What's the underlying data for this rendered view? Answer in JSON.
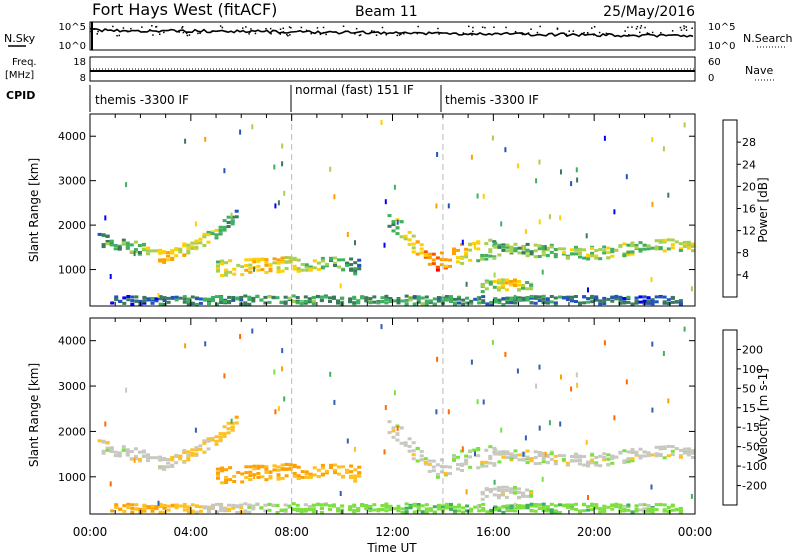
{
  "header": {
    "station": "Fort Hays West (fitACF)",
    "beam": "Beam 11",
    "date": "25/May/2016"
  },
  "sky_panel": {
    "left_label": "N.Sky",
    "right_label": "N.Search",
    "left_ticks": [
      "10^5",
      "10^0"
    ],
    "right_ticks": [
      "10^5",
      "10^0"
    ]
  },
  "freq_panel": {
    "left_label_1": "Freq.",
    "left_label_2": "[MHz]",
    "right_label": "Nave",
    "left_ticks": [
      "18",
      "8"
    ],
    "right_ticks": [
      "60",
      "0"
    ]
  },
  "cpid_panel": {
    "label": "CPID",
    "segments": [
      {
        "start_hour": 0,
        "end_hour": 8,
        "text": "themis -3300 IF"
      },
      {
        "start_hour": 8,
        "end_hour": 14,
        "text": "normal (fast) 151 IF"
      },
      {
        "start_hour": 14,
        "end_hour": 24,
        "text": "themis -3300 IF"
      }
    ]
  },
  "colors": {
    "power": [
      "#0000ff",
      "#2255bb",
      "#3a7a5a",
      "#3fb060",
      "#a8d050",
      "#ffd000",
      "#ffa000",
      "#ff5000",
      "#ff0000"
    ],
    "velocity": [
      "#ee0000",
      "#ff6a00",
      "#ffa000",
      "#ffc020",
      "#c8c8c0",
      "#c8c8c0",
      "#7ce040",
      "#40b060",
      "#3060b0",
      "#1030c0"
    ],
    "velocity_ground": "#c8c8c0",
    "grid_dash": "#bbbbbb"
  },
  "chart_data": [
    {
      "type": "heatmap",
      "name": "power",
      "xlabel": "",
      "ylabel": "Slant Range [km]",
      "colorbar_label": "Power [dB]",
      "colorbar_ticks": [
        "28",
        "24",
        "20",
        "16",
        "12",
        "8",
        "4"
      ],
      "colorbar_range": [
        0,
        32
      ],
      "xlim": [
        0,
        24
      ],
      "ylim": [
        180,
        4500
      ],
      "yticks": [
        "4000",
        "3000",
        "2000",
        "1000"
      ],
      "ytick_values": [
        4000,
        3000,
        2000,
        1000
      ],
      "regions": [
        {
          "x": [
            0.3,
            2.0,
            3.0,
            4.8,
            5.8
          ],
          "y": [
            1700,
            1500,
            1300,
            1800,
            2300
          ],
          "width_km": 140,
          "power": [
            10,
            14,
            22,
            16,
            8
          ]
        },
        {
          "x": [
            5.0,
            6.5,
            8.0,
            9.5,
            10.7
          ],
          "y": [
            1050,
            1100,
            1150,
            1150,
            1100
          ],
          "width_km": 180,
          "power": [
            16,
            22,
            18,
            14,
            8
          ]
        },
        {
          "x": [
            11.8,
            12.8,
            13.6,
            14.8,
            16.0
          ],
          "y": [
            2200,
            1600,
            1200,
            1400,
            1500
          ],
          "width_km": 220,
          "power": [
            12,
            20,
            26,
            18,
            12
          ]
        },
        {
          "x": [
            16.0,
            18.0,
            20.0,
            22.0,
            24.0
          ],
          "y": [
            1500,
            1450,
            1400,
            1550,
            1600
          ],
          "width_km": 140,
          "power": [
            12,
            14,
            16,
            14,
            18
          ]
        },
        {
          "x": [
            15.5,
            16.5,
            17.5
          ],
          "y": [
            650,
            700,
            650
          ],
          "width_km": 120,
          "power": [
            12,
            20,
            14
          ]
        },
        {
          "x": [
            0.8,
            3.0,
            8.0,
            16.0,
            23.5
          ],
          "y": [
            320,
            330,
            330,
            330,
            320
          ],
          "width_km": 110,
          "power": [
            4,
            8,
            12,
            10,
            6
          ]
        }
      ]
    },
    {
      "type": "heatmap",
      "name": "velocity",
      "xlabel": "Time UT",
      "ylabel": "Slant Range [km]",
      "colorbar_label": "Velocity [m s-1]",
      "colorbar_ticks": [
        "200",
        "100",
        "50",
        "15",
        "-15",
        "-50",
        "-100",
        "-200"
      ],
      "colorbar_range": [
        -250,
        250
      ],
      "xlim": [
        0,
        24
      ],
      "ylim": [
        180,
        4500
      ],
      "xticks": [
        "00:00",
        "04:00",
        "08:00",
        "12:00",
        "16:00",
        "20:00",
        "00:00"
      ],
      "xtick_values": [
        0,
        4,
        8,
        12,
        16,
        20,
        24
      ],
      "yticks": [
        "4000",
        "3000",
        "2000",
        "1000"
      ],
      "ytick_values": [
        4000,
        3000,
        2000,
        1000
      ],
      "regions": [
        {
          "x": [
            0.3,
            2.0,
            3.0,
            4.8,
            5.8
          ],
          "y": [
            1700,
            1500,
            1300,
            1800,
            2300
          ],
          "width_km": 140,
          "velocity": [
            0,
            0,
            0,
            -30,
            -40
          ]
        },
        {
          "x": [
            5.0,
            6.5,
            8.0,
            9.5,
            10.7
          ],
          "y": [
            1050,
            1100,
            1150,
            1150,
            1100
          ],
          "width_km": 180,
          "velocity": [
            -60,
            -55,
            -50,
            -45,
            -40
          ]
        },
        {
          "x": [
            11.8,
            12.8,
            13.6,
            14.8,
            16.0
          ],
          "y": [
            2200,
            1600,
            1200,
            1400,
            1500
          ],
          "width_km": 220,
          "velocity": [
            0,
            0,
            0,
            0,
            0
          ]
        },
        {
          "x": [
            16.0,
            18.0,
            20.0,
            22.0,
            24.0
          ],
          "y": [
            1500,
            1450,
            1400,
            1550,
            1600
          ],
          "width_km": 140,
          "velocity": [
            0,
            0,
            0,
            0,
            0
          ]
        },
        {
          "x": [
            15.5,
            16.5,
            17.5
          ],
          "y": [
            650,
            700,
            650
          ],
          "width_km": 120,
          "velocity": [
            0,
            0,
            0
          ]
        },
        {
          "x": [
            0.8,
            3.0,
            8.0,
            16.0,
            23.5
          ],
          "y": [
            320,
            330,
            330,
            330,
            320
          ],
          "width_km": 110,
          "velocity": [
            -60,
            -45,
            30,
            40,
            30
          ]
        }
      ]
    }
  ],
  "time_markers_hours": [
    8,
    14
  ]
}
